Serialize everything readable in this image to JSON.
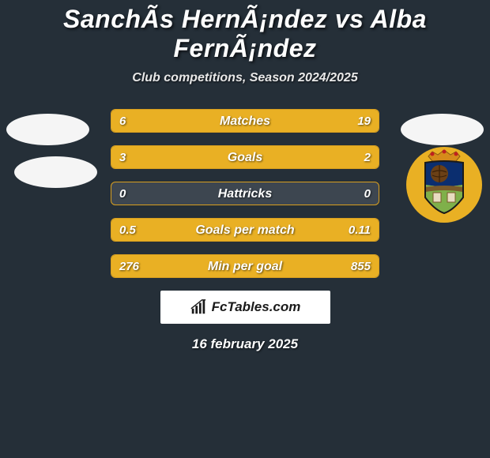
{
  "colors": {
    "background": "#252f38",
    "text_primary": "#ffffff",
    "text_shadow": "#0d1014",
    "subtitle": "#e8e8e8",
    "badge_white": "#f5f5f5",
    "row_base": "#3d4650",
    "row_fill_left": "#e9b024",
    "row_fill_right": "#e9b024",
    "row_border": "#d89f1f",
    "footer_bg": "#ffffff",
    "footer_text": "#1a1a1a",
    "crest_bg": "#e9b024",
    "crest_crown": "#d68b1a",
    "crest_upper": "#0b2e6f",
    "crest_ball": "#6b4016",
    "crest_lower": "#7fb04a",
    "crest_brown": "#7a5a2a"
  },
  "title": "SanchÃ­s HernÃ¡ndez vs Alba FernÃ¡ndez",
  "subtitle": "Club competitions, Season 2024/2025",
  "rows": [
    {
      "label": "Matches",
      "left": "6",
      "right": "19",
      "left_pct": 24,
      "right_pct": 76
    },
    {
      "label": "Goals",
      "left": "3",
      "right": "2",
      "left_pct": 60,
      "right_pct": 40
    },
    {
      "label": "Hattricks",
      "left": "0",
      "right": "0",
      "left_pct": 0,
      "right_pct": 0
    },
    {
      "label": "Goals per match",
      "left": "0.5",
      "right": "0.11",
      "left_pct": 82,
      "right_pct": 18
    },
    {
      "label": "Min per goal",
      "left": "276",
      "right": "855",
      "left_pct": 24,
      "right_pct": 76
    }
  ],
  "footer_brand": "FcTables.com",
  "date": "16 february 2025"
}
